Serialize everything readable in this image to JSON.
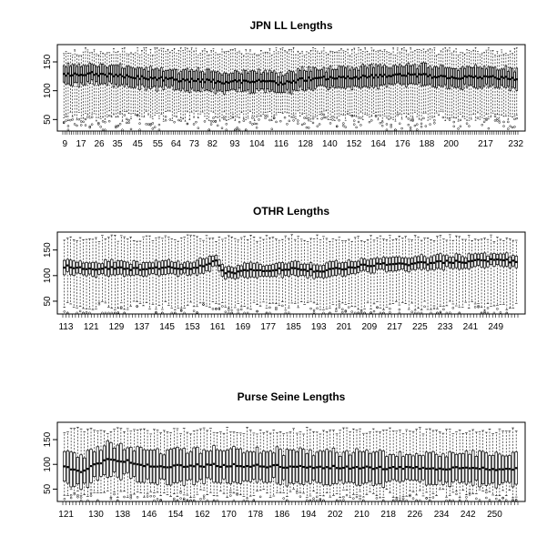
{
  "chart_data": [
    {
      "type": "boxplot",
      "title": "JPN LL Lengths",
      "xlabel": "",
      "ylabel": "",
      "ylim": [
        30,
        180
      ],
      "y_ticks": [
        50,
        100,
        150
      ],
      "x_range": [
        8,
        233
      ],
      "x_tick_labels": [
        9,
        17,
        26,
        35,
        45,
        55,
        64,
        73,
        82,
        93,
        104,
        116,
        128,
        140,
        152,
        164,
        176,
        188,
        200,
        217,
        232
      ],
      "n_boxes": 210,
      "median_profile": [
        [
          9,
          128
        ],
        [
          20,
          130
        ],
        [
          35,
          126
        ],
        [
          50,
          122
        ],
        [
          70,
          118
        ],
        [
          90,
          115
        ],
        [
          104,
          117
        ],
        [
          116,
          112
        ],
        [
          128,
          120
        ],
        [
          140,
          122
        ],
        [
          152,
          123
        ],
        [
          164,
          125
        ],
        [
          176,
          128
        ],
        [
          188,
          126
        ],
        [
          200,
          122
        ],
        [
          217,
          124
        ],
        [
          232,
          120
        ]
      ],
      "q1_q3_halfwidth": 16,
      "whisker_max": 175,
      "whisker_min": 55
    },
    {
      "type": "boxplot",
      "title": "OTHR Lengths",
      "xlabel": "",
      "ylabel": "",
      "ylim": [
        25,
        185
      ],
      "y_ticks": [
        50,
        100,
        150
      ],
      "x_range": [
        112,
        256
      ],
      "x_tick_labels": [
        113,
        121,
        129,
        137,
        145,
        153,
        161,
        169,
        177,
        185,
        193,
        201,
        209,
        217,
        225,
        233,
        241,
        249
      ],
      "n_boxes": 144,
      "median_profile": [
        [
          113,
          118
        ],
        [
          121,
          114
        ],
        [
          129,
          114
        ],
        [
          137,
          113
        ],
        [
          145,
          116
        ],
        [
          153,
          115
        ],
        [
          161,
          128
        ],
        [
          163,
          104
        ],
        [
          169,
          108
        ],
        [
          177,
          112
        ],
        [
          185,
          113
        ],
        [
          193,
          108
        ],
        [
          201,
          115
        ],
        [
          209,
          120
        ],
        [
          217,
          122
        ],
        [
          225,
          124
        ],
        [
          233,
          126
        ],
        [
          241,
          128
        ],
        [
          249,
          130
        ],
        [
          256,
          128
        ]
      ],
      "q1_q3_halfwidth": 12,
      "whisker_max": 180,
      "whisker_min": 40
    },
    {
      "type": "boxplot",
      "title": "Purse Seine Lengths",
      "xlabel": "",
      "ylabel": "",
      "ylim": [
        25,
        185
      ],
      "y_ticks": [
        50,
        100,
        150
      ],
      "x_range": [
        120,
        257
      ],
      "x_tick_labels": [
        121,
        130,
        138,
        146,
        154,
        162,
        170,
        178,
        186,
        194,
        202,
        210,
        218,
        226,
        234,
        242,
        250
      ],
      "n_boxes": 137,
      "median_profile": [
        [
          121,
          96
        ],
        [
          126,
          84
        ],
        [
          130,
          100
        ],
        [
          134,
          112
        ],
        [
          138,
          108
        ],
        [
          142,
          102
        ],
        [
          146,
          96
        ],
        [
          154,
          96
        ],
        [
          162,
          98
        ],
        [
          170,
          98
        ],
        [
          178,
          97
        ],
        [
          186,
          96
        ],
        [
          194,
          94
        ],
        [
          202,
          94
        ],
        [
          210,
          94
        ],
        [
          218,
          93
        ],
        [
          226,
          92
        ],
        [
          234,
          92
        ],
        [
          242,
          92
        ],
        [
          250,
          90
        ],
        [
          257,
          90
        ]
      ],
      "q1_q3_halfwidth": 30,
      "whisker_max": 175,
      "whisker_min": 40
    }
  ]
}
